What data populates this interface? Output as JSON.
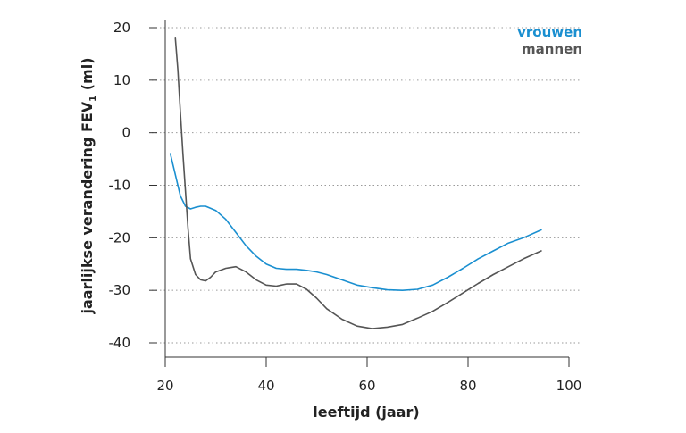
{
  "chart_data": {
    "type": "line",
    "xlabel": "leeftijd (jaar)",
    "ylabel_main": "jaarlijkse verandering FEV",
    "ylabel_sub": "1",
    "ylabel_unit": " (ml)",
    "xlim": [
      20,
      100
    ],
    "ylim": [
      -40,
      20
    ],
    "x_ticks": [
      20,
      40,
      60,
      80,
      100
    ],
    "y_ticks": [
      20,
      10,
      0,
      -10,
      -20,
      -30,
      -40
    ],
    "grid": "horizontal dotted",
    "legend_position": "top-right",
    "series": [
      {
        "name": "vrouwen",
        "color": "#1a8fd0",
        "x": [
          21,
          22,
          23,
          24,
          25,
          26,
          27,
          28,
          30,
          32,
          34,
          36,
          38,
          40,
          42,
          44,
          46,
          48,
          50,
          52,
          55,
          58,
          61,
          64,
          67,
          70,
          73,
          76,
          79,
          82,
          85,
          88,
          91,
          94.5
        ],
        "y": [
          -4,
          -8,
          -12,
          -14,
          -14.5,
          -14.2,
          -14,
          -14,
          -14.8,
          -16.5,
          -19,
          -21.5,
          -23.5,
          -25,
          -25.8,
          -26,
          -26,
          -26.2,
          -26.5,
          -27,
          -28,
          -29,
          -29.5,
          -29.9,
          -30,
          -29.8,
          -29,
          -27.5,
          -25.8,
          -24,
          -22.5,
          -21,
          -20,
          -18.5
        ]
      },
      {
        "name": "mannen",
        "color": "#555555",
        "x": [
          22,
          22.5,
          23,
          23.5,
          24,
          24.5,
          25,
          26,
          27,
          28,
          29,
          30,
          32,
          34,
          36,
          38,
          40,
          42,
          43,
          44,
          46,
          48,
          50,
          52,
          55,
          58,
          61,
          64,
          67,
          70,
          73,
          76,
          79,
          82,
          85,
          88,
          91,
          94.5
        ],
        "y": [
          18,
          12,
          4,
          -4,
          -11,
          -18,
          -24,
          -27,
          -28,
          -28.2,
          -27.5,
          -26.5,
          -25.8,
          -25.5,
          -26.5,
          -28,
          -29,
          -29.2,
          -29,
          -28.8,
          -28.8,
          -29.8,
          -31.5,
          -33.5,
          -35.5,
          -36.8,
          -37.3,
          -37,
          -36.5,
          -35.3,
          -34,
          -32.3,
          -30.5,
          -28.7,
          -27,
          -25.5,
          -24,
          -22.5
        ]
      }
    ]
  }
}
